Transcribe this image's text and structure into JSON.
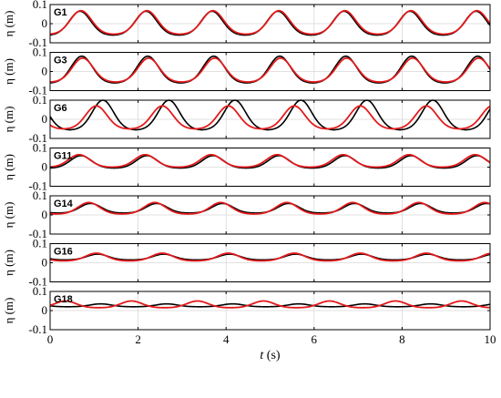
{
  "chart_data": {
    "type": "line",
    "panels": [
      "G1",
      "G3",
      "G6",
      "G11",
      "G14",
      "G16",
      "G18"
    ],
    "ylabel": "η (m)",
    "xlabel_italic": "t",
    "xlabel_unit": "(s)",
    "xlim": [
      0,
      10
    ],
    "ylim": [
      -0.1,
      0.1
    ],
    "xticks": [
      0,
      2,
      4,
      6,
      8,
      10
    ],
    "yticks": [
      -0.1,
      0,
      0.1
    ],
    "ytick_labels": [
      "-0.1",
      "0",
      "0.1"
    ],
    "period": 1.5,
    "grid": true,
    "series": [
      {
        "color": "#000000",
        "profiles": [
          {
            "crest_time": 0.68,
            "crest": 0.065,
            "trough": -0.06
          },
          {
            "crest_time": 0.72,
            "crest": 0.08,
            "trough": -0.06
          },
          {
            "crest_time": 1.2,
            "crest": 0.1,
            "trough": -0.055
          },
          {
            "crest_time": 0.7,
            "crest": 0.06,
            "trough": -0.005
          },
          {
            "crest_time": 0.92,
            "crest": 0.06,
            "trough": 0.01
          },
          {
            "crest_time": 1.08,
            "crest": 0.045,
            "trough": 0.015
          },
          {
            "crest_time": 1.15,
            "crest": 0.035,
            "trough": 0.02
          }
        ]
      },
      {
        "color": "#e31a1c",
        "profiles": [
          {
            "crest_time": 0.7,
            "crest": 0.068,
            "trough": -0.055
          },
          {
            "crest_time": 0.74,
            "crest": 0.07,
            "trough": -0.055
          },
          {
            "crest_time": 1.05,
            "crest": 0.07,
            "trough": -0.05
          },
          {
            "crest_time": 0.66,
            "crest": 0.065,
            "trough": 0.0
          },
          {
            "crest_time": 0.88,
            "crest": 0.065,
            "trough": 0.005
          },
          {
            "crest_time": 1.05,
            "crest": 0.05,
            "trough": 0.01
          },
          {
            "crest_time": 1.85,
            "crest": 0.05,
            "trough": 0.015
          }
        ]
      }
    ]
  }
}
